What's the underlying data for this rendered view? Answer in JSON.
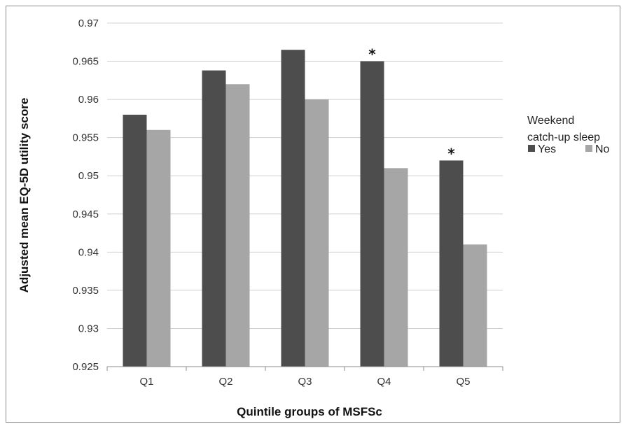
{
  "chart_data": {
    "type": "bar",
    "title": "",
    "xlabel": "Quintile groups of MSFSc",
    "ylabel": "Adjusted mean EQ-5D utility score",
    "categories": [
      "Q1",
      "Q2",
      "Q3",
      "Q4",
      "Q5"
    ],
    "series": [
      {
        "name": "Yes",
        "color": "#4d4d4d",
        "values": [
          0.958,
          0.9638,
          0.9665,
          0.965,
          0.952
        ]
      },
      {
        "name": "No",
        "color": "#a6a6a6",
        "values": [
          0.956,
          0.962,
          0.96,
          0.951,
          0.941
        ]
      }
    ],
    "ylim": [
      0.925,
      0.97
    ],
    "yticks": [
      "0.925",
      "0.93",
      "0.935",
      "0.94",
      "0.945",
      "0.95",
      "0.955",
      "0.96",
      "0.965",
      "0.97"
    ],
    "grid": true,
    "legend": {
      "title_line1": "Weekend",
      "title_line2": "catch-up sleep",
      "placement": "right"
    },
    "annotations": [
      {
        "category": "Q4",
        "text": "*"
      },
      {
        "category": "Q5",
        "text": "*"
      }
    ]
  }
}
